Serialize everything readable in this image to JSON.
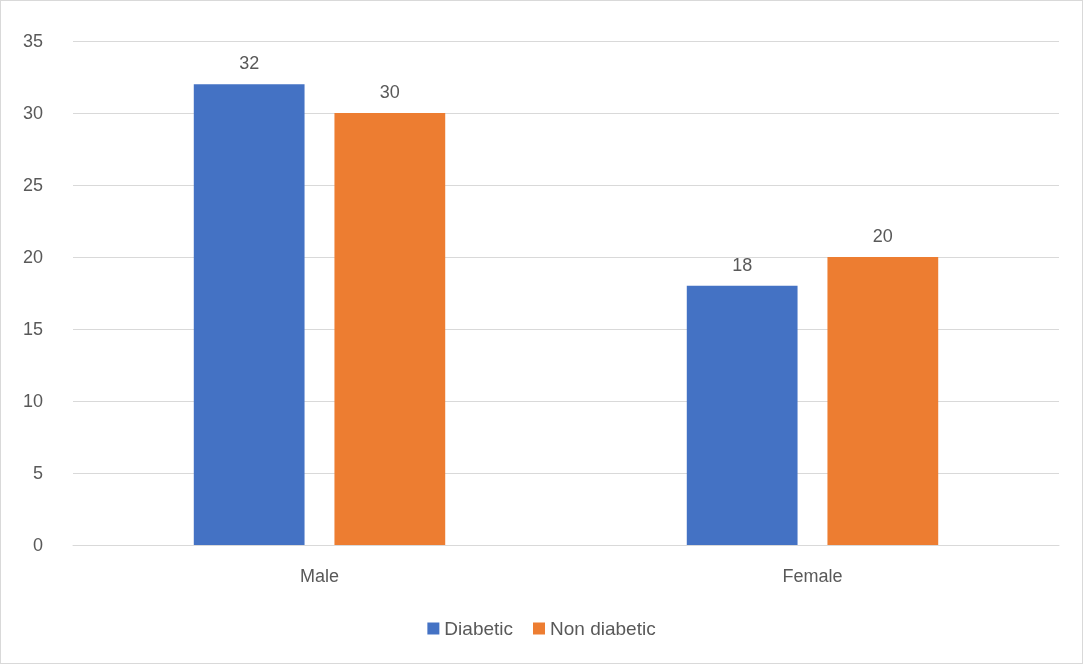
{
  "chart_data": {
    "type": "bar",
    "categories": [
      "Male",
      "Female"
    ],
    "series": [
      {
        "name": "Diabetic",
        "color": "#4472c4",
        "values": [
          32,
          18
        ]
      },
      {
        "name": "Non diabetic",
        "color": "#ed7d31",
        "values": [
          30,
          20
        ]
      }
    ],
    "ylim": [
      0,
      35
    ],
    "yticks": [
      0,
      5,
      10,
      15,
      20,
      25,
      30,
      35
    ],
    "grid": "y",
    "legend": "bottom",
    "data_labels": true
  }
}
